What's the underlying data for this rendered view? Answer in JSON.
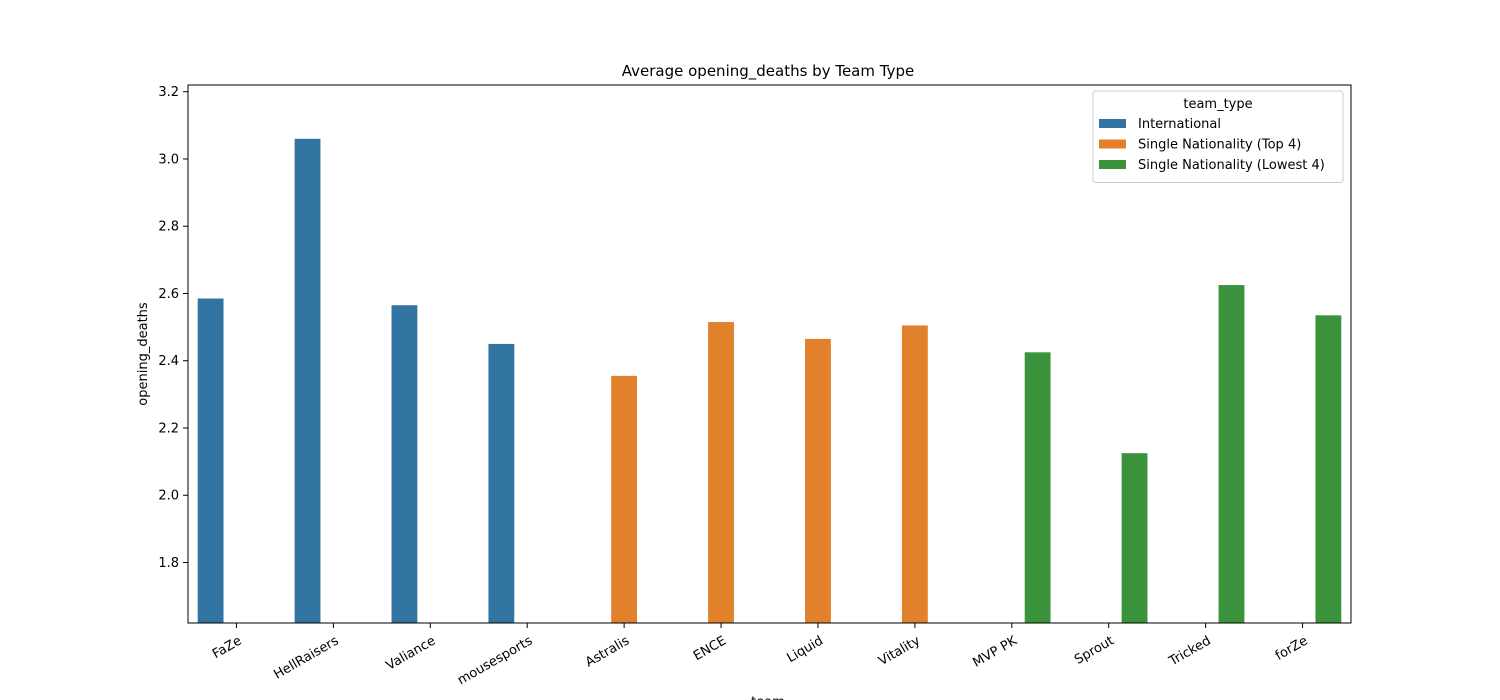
{
  "chart_data": {
    "type": "bar",
    "title": "Average opening_deaths by Team Type",
    "xlabel": "team",
    "ylabel": "opening_deaths",
    "ylim": [
      1.62,
      3.22
    ],
    "yticks": [
      1.8,
      2.0,
      2.2,
      2.4,
      2.6,
      2.8,
      3.0,
      3.2
    ],
    "grid": false,
    "legend_title": "team_type",
    "legend_position": "top-right",
    "categories": [
      "FaZe",
      "HellRaisers",
      "Valiance",
      "mousesports",
      "Astralis",
      "ENCE",
      "Liquid",
      "Vitality",
      "MVP PK",
      "Sprout",
      "Tricked",
      "forZe"
    ],
    "series": [
      {
        "name": "International",
        "color": "#3274a1",
        "values": [
          2.585,
          3.06,
          2.565,
          2.45,
          null,
          null,
          null,
          null,
          null,
          null,
          null,
          null
        ]
      },
      {
        "name": "Single Nationality (Top 4)",
        "color": "#e1812c",
        "values": [
          null,
          null,
          null,
          null,
          2.355,
          2.515,
          2.465,
          2.505,
          null,
          null,
          null,
          null
        ]
      },
      {
        "name": "Single Nationality (Lowest 4)",
        "color": "#3a923a",
        "values": [
          null,
          null,
          null,
          null,
          null,
          null,
          null,
          null,
          2.425,
          2.125,
          2.625,
          2.535
        ]
      }
    ]
  }
}
